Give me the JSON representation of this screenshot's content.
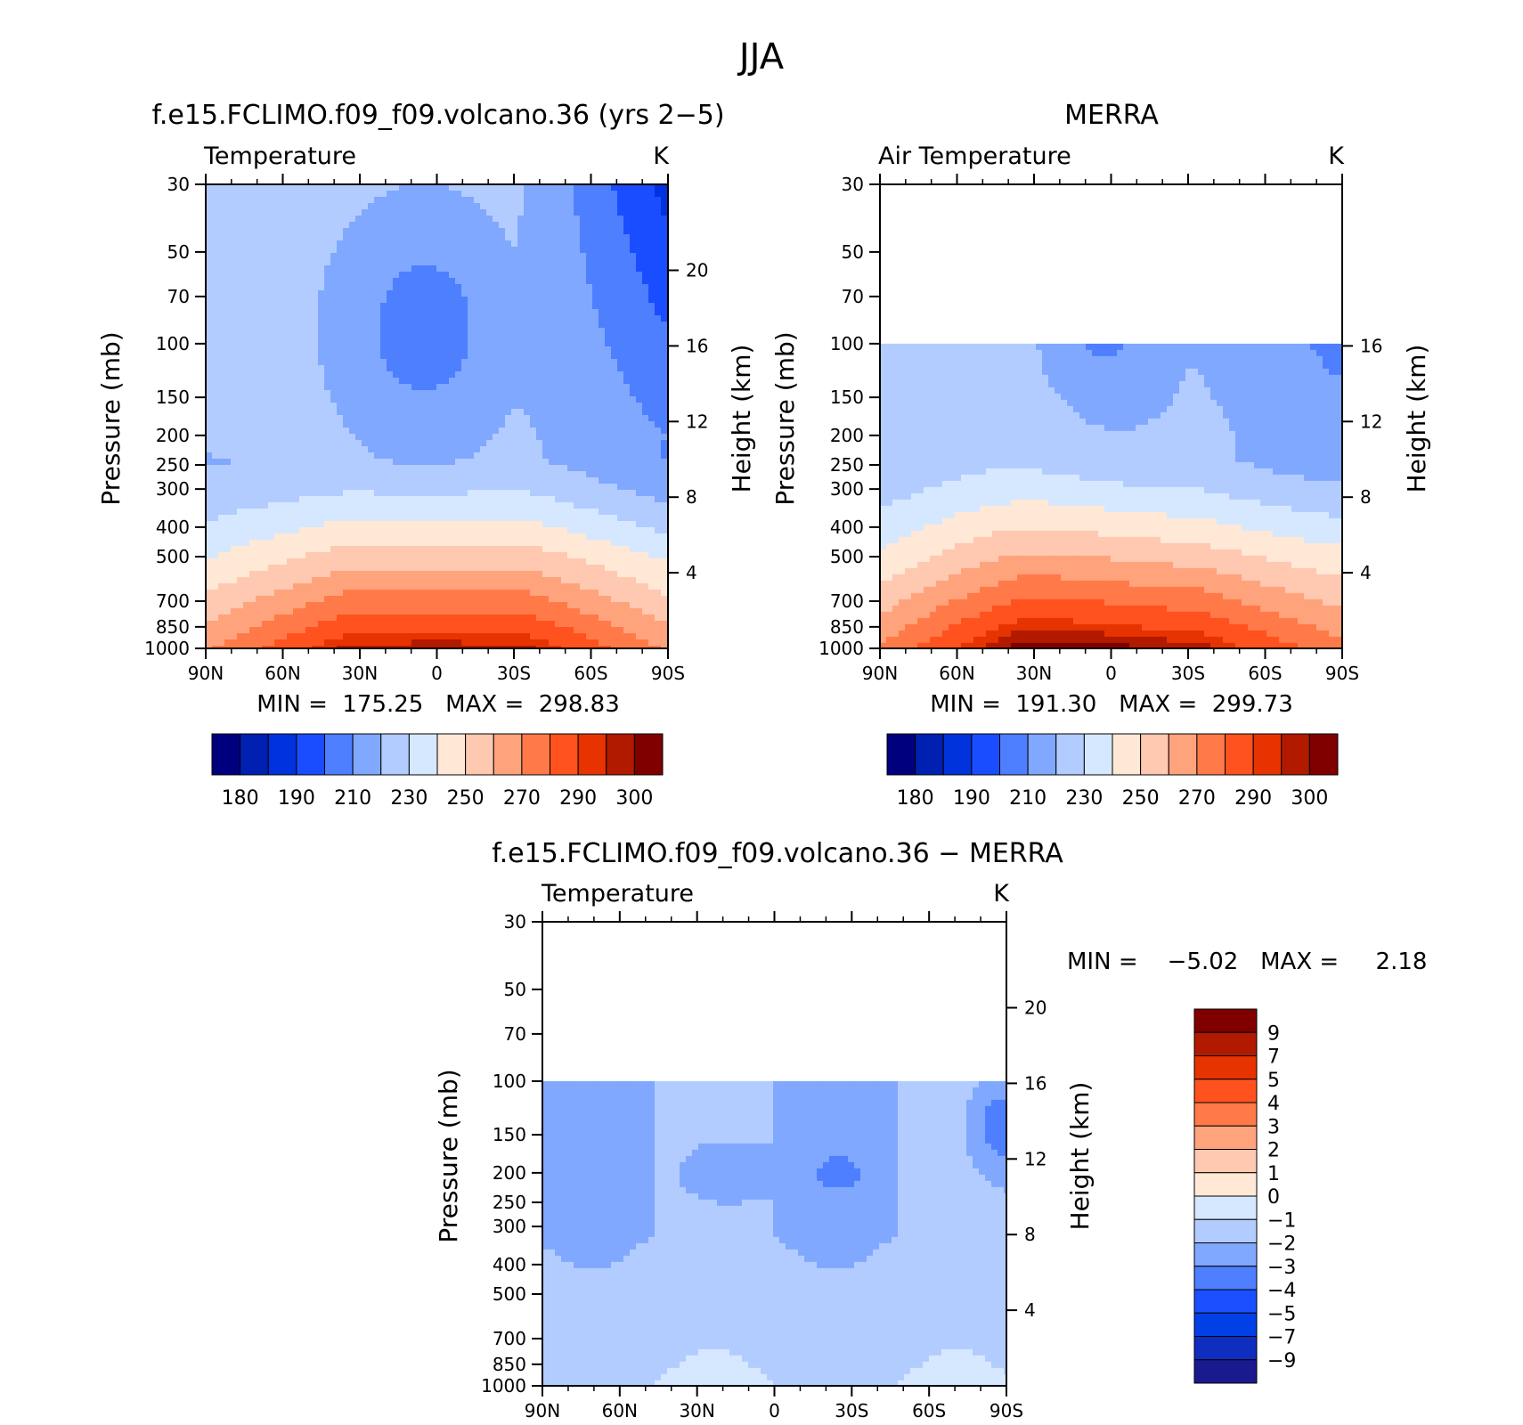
{
  "figure": {
    "title": "JJA"
  },
  "colors": {
    "abs_palette": [
      "#00007f",
      "#0020b2",
      "#0033dd",
      "#1a4dff",
      "#4d7fff",
      "#80a8ff",
      "#b3ccff",
      "#d6e8ff",
      "#ffe8d6",
      "#ffc8b0",
      "#ffa37d",
      "#ff7a48",
      "#ff521e",
      "#e63300",
      "#b21a00",
      "#800000"
    ],
    "diff_palette": [
      "#1a1a8f",
      "#0f2dbf",
      "#0040e6",
      "#1a50ff",
      "#4d7fff",
      "#80a8ff",
      "#b3ccff",
      "#d6e8ff",
      "#ffe8d6",
      "#ffc8b0",
      "#ffa37d",
      "#ff7a48",
      "#ff521e",
      "#e63300",
      "#b21a00",
      "#800000"
    ]
  },
  "chart_data": [
    {
      "type": "heatmap",
      "title": "f.e15.FCLIMO.f09_f09.volcano.36 (yrs 2−5)",
      "variable_label": "Temperature",
      "units": "K",
      "stats": "MIN =  175.25   MAX =  298.83",
      "min": 175.25,
      "max": 298.83,
      "x_ticks": [
        "90N",
        "60N",
        "30N",
        "0",
        "30S",
        "60S",
        "90S"
      ],
      "x_tick_values": [
        90,
        60,
        30,
        0,
        -30,
        -60,
        -90
      ],
      "y_ticks": [
        "30",
        "50",
        "70",
        "100",
        "150",
        "200",
        "250",
        "300",
        "400",
        "500",
        "700",
        "850",
        "1000"
      ],
      "y_tick_values": [
        30,
        50,
        70,
        100,
        150,
        200,
        250,
        300,
        400,
        500,
        700,
        850,
        1000
      ],
      "ylabel": "Pressure (mb)",
      "ylim": [
        1000,
        30
      ],
      "yscale": "log",
      "y2label": "Height (km)",
      "y2_ticks": [
        "20",
        "16",
        "12",
        "8",
        "4"
      ],
      "y2_tick_values": [
        20,
        16,
        12,
        8,
        4
      ],
      "data_top_mb": 30,
      "colorbar_labels": [
        "180",
        "190",
        "210",
        "230",
        "250",
        "270",
        "290",
        "300"
      ],
      "colorbar_orientation": "horizontal"
    },
    {
      "type": "heatmap",
      "title": "MERRA",
      "variable_label": "Air Temperature",
      "units": "K",
      "stats": "MIN =  191.30   MAX =  299.73",
      "min": 191.3,
      "max": 299.73,
      "x_ticks": [
        "90N",
        "60N",
        "30N",
        "0",
        "30S",
        "60S",
        "90S"
      ],
      "x_tick_values": [
        90,
        60,
        30,
        0,
        -30,
        -60,
        -90
      ],
      "y_ticks": [
        "30",
        "50",
        "70",
        "100",
        "150",
        "200",
        "250",
        "300",
        "400",
        "500",
        "700",
        "850",
        "1000"
      ],
      "y_tick_values": [
        30,
        50,
        70,
        100,
        150,
        200,
        250,
        300,
        400,
        500,
        700,
        850,
        1000
      ],
      "ylabel": "Pressure (mb)",
      "ylim": [
        1000,
        30
      ],
      "yscale": "log",
      "y2label": "Height (km)",
      "y2_ticks": [
        "16",
        "12",
        "8",
        "4"
      ],
      "y2_tick_values": [
        16,
        12,
        8,
        4
      ],
      "data_top_mb": 100,
      "colorbar_labels": [
        "180",
        "190",
        "210",
        "230",
        "250",
        "270",
        "290",
        "300"
      ],
      "colorbar_orientation": "horizontal"
    },
    {
      "type": "heatmap",
      "title": "f.e15.FCLIMO.f09_f09.volcano.36 − MERRA",
      "variable_label": "Temperature",
      "units": "K",
      "stats": "MIN =    −5.02   MAX =     2.18",
      "min": -5.02,
      "max": 2.18,
      "x_ticks": [
        "90N",
        "60N",
        "30N",
        "0",
        "30S",
        "60S",
        "90S"
      ],
      "x_tick_values": [
        90,
        60,
        30,
        0,
        -30,
        -60,
        -90
      ],
      "y_ticks": [
        "30",
        "50",
        "70",
        "100",
        "150",
        "200",
        "250",
        "300",
        "400",
        "500",
        "700",
        "850",
        "1000"
      ],
      "y_tick_values": [
        30,
        50,
        70,
        100,
        150,
        200,
        250,
        300,
        400,
        500,
        700,
        850,
        1000
      ],
      "ylabel": "Pressure (mb)",
      "ylim": [
        1000,
        30
      ],
      "yscale": "log",
      "y2label": "Height (km)",
      "y2_ticks": [
        "20",
        "16",
        "12",
        "8",
        "4"
      ],
      "y2_tick_values": [
        20,
        16,
        12,
        8,
        4
      ],
      "data_top_mb": 100,
      "colorbar_labels": [
        "9",
        "7",
        "5",
        "4",
        "3",
        "2",
        "1",
        "0",
        "−1",
        "−2",
        "−3",
        "−4",
        "−5",
        "−7",
        "−9"
      ],
      "colorbar_orientation": "vertical"
    }
  ]
}
